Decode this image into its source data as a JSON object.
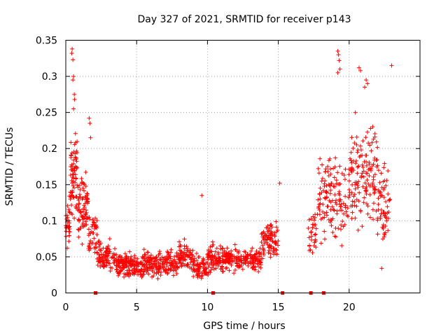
{
  "chart_data": {
    "type": "scatter",
    "title": "Day 327 of 2021, SRMTID for receiver p143",
    "xlabel": "GPS time / hours",
    "ylabel": "SRMTID / TECUs",
    "xlim": [
      0,
      25
    ],
    "ylim": [
      0,
      0.35
    ],
    "xticks": [
      0,
      5,
      10,
      15,
      20
    ],
    "xtick_labels": [
      "0",
      "5",
      "10",
      "15",
      "20"
    ],
    "yticks": [
      0,
      0.05,
      0.1,
      0.15,
      0.2,
      0.25,
      0.3,
      0.35
    ],
    "ytick_labels": [
      "0",
      "0.05",
      "0.1",
      "0.15",
      "0.2",
      "0.25",
      "0.3",
      "0.35"
    ],
    "grid": true,
    "legend": "none",
    "marker_color": "#ff0000",
    "segments": [
      {
        "x0": 0.0,
        "x1": 0.3,
        "lo": 0.06,
        "hi": 0.15,
        "n": 30
      },
      {
        "x0": 0.3,
        "x1": 0.8,
        "lo": 0.08,
        "hi": 0.25,
        "n": 70
      },
      {
        "x0": 0.8,
        "x1": 1.6,
        "lo": 0.06,
        "hi": 0.18,
        "n": 80
      },
      {
        "x0": 1.6,
        "x1": 2.2,
        "lo": 0.04,
        "hi": 0.12,
        "n": 45
      },
      {
        "x0": 2.2,
        "x1": 3.5,
        "lo": 0.02,
        "hi": 0.08,
        "n": 90
      },
      {
        "x0": 3.5,
        "x1": 5.5,
        "lo": 0.015,
        "hi": 0.06,
        "n": 160
      },
      {
        "x0": 5.5,
        "x1": 8.0,
        "lo": 0.015,
        "hi": 0.065,
        "n": 180
      },
      {
        "x0": 8.0,
        "x1": 9.0,
        "lo": 0.02,
        "hi": 0.08,
        "n": 70
      },
      {
        "x0": 9.0,
        "x1": 10.0,
        "lo": 0.01,
        "hi": 0.06,
        "n": 70
      },
      {
        "x0": 10.0,
        "x1": 12.0,
        "lo": 0.02,
        "hi": 0.075,
        "n": 150
      },
      {
        "x0": 12.0,
        "x1": 13.8,
        "lo": 0.02,
        "hi": 0.07,
        "n": 120
      },
      {
        "x0": 13.8,
        "x1": 15.0,
        "lo": 0.04,
        "hi": 0.11,
        "n": 90
      },
      {
        "x0": 17.1,
        "x1": 17.7,
        "lo": 0.04,
        "hi": 0.13,
        "n": 30
      },
      {
        "x0": 17.7,
        "x1": 18.6,
        "lo": 0.05,
        "hi": 0.22,
        "n": 55
      },
      {
        "x0": 18.6,
        "x1": 20.0,
        "lo": 0.05,
        "hi": 0.2,
        "n": 80
      },
      {
        "x0": 20.0,
        "x1": 21.0,
        "lo": 0.06,
        "hi": 0.27,
        "n": 70
      },
      {
        "x0": 21.0,
        "x1": 22.0,
        "lo": 0.08,
        "hi": 0.25,
        "n": 70
      },
      {
        "x0": 22.0,
        "x1": 22.9,
        "lo": 0.05,
        "hi": 0.2,
        "n": 60
      }
    ],
    "outliers": [
      {
        "x": 0.45,
        "y": 0.338
      },
      {
        "x": 0.42,
        "y": 0.332
      },
      {
        "x": 0.5,
        "y": 0.323
      },
      {
        "x": 0.55,
        "y": 0.3
      },
      {
        "x": 0.5,
        "y": 0.295
      },
      {
        "x": 0.6,
        "y": 0.275
      },
      {
        "x": 0.62,
        "y": 0.268
      },
      {
        "x": 0.55,
        "y": 0.255
      },
      {
        "x": 1.65,
        "y": 0.242
      },
      {
        "x": 1.7,
        "y": 0.235
      },
      {
        "x": 1.75,
        "y": 0.215
      },
      {
        "x": 9.6,
        "y": 0.135
      },
      {
        "x": 15.1,
        "y": 0.152
      },
      {
        "x": 19.2,
        "y": 0.335
      },
      {
        "x": 19.25,
        "y": 0.33
      },
      {
        "x": 19.3,
        "y": 0.322
      },
      {
        "x": 19.35,
        "y": 0.31
      },
      {
        "x": 19.2,
        "y": 0.305
      },
      {
        "x": 20.7,
        "y": 0.312
      },
      {
        "x": 20.8,
        "y": 0.308
      },
      {
        "x": 21.2,
        "y": 0.295
      },
      {
        "x": 21.3,
        "y": 0.29
      },
      {
        "x": 21.1,
        "y": 0.285
      },
      {
        "x": 23.0,
        "y": 0.315
      },
      {
        "x": 22.3,
        "y": 0.034
      },
      {
        "x": 0.1,
        "y": 0.062
      }
    ],
    "axis_markers_x": [
      2.1,
      10.4,
      15.3,
      17.3,
      18.2
    ]
  }
}
